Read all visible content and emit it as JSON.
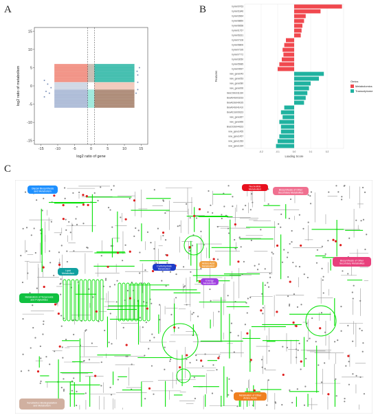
{
  "panel_letters": {
    "a": "A",
    "b": "B",
    "c": "C"
  },
  "chart_data": [
    {
      "type": "scatter",
      "panel": "A",
      "xlabel": "log2 ratio of gene",
      "ylabel": "log2 ratio of metabolism",
      "xlim": [
        -17,
        17
      ],
      "ylim": [
        -16,
        16
      ],
      "xticks": [
        -15,
        -10,
        -5,
        0,
        5,
        10,
        15
      ],
      "yticks": [
        -15,
        -10,
        -5,
        0,
        5,
        10,
        15
      ],
      "threshold_lines": [
        -1,
        1
      ],
      "grid": false,
      "regions": [
        {
          "x": [
            -11,
            -1
          ],
          "y": [
            1,
            6
          ],
          "color": "#f08070"
        },
        {
          "x": [
            1,
            13
          ],
          "y": [
            1,
            6
          ],
          "color": "#20b2a0"
        },
        {
          "x": [
            -11,
            -1
          ],
          "y": [
            -6,
            -1
          ],
          "color": "#a0b0d0"
        },
        {
          "x": [
            1,
            13
          ],
          "y": [
            -6,
            -1
          ],
          "color": "#a07860"
        },
        {
          "x": [
            -1,
            1
          ],
          "y": [
            1,
            6
          ],
          "color": "#bdb1a5"
        },
        {
          "x": [
            -1,
            1
          ],
          "y": [
            -6,
            -1
          ],
          "color": "#8ee6d6"
        },
        {
          "x": [
            -11,
            -1
          ],
          "y": [
            -1,
            1
          ],
          "color": "#c7d0e0"
        },
        {
          "x": [
            1,
            13
          ],
          "y": [
            -1,
            1
          ],
          "color": "#f0c0b0"
        }
      ]
    },
    {
      "type": "bar",
      "panel": "B",
      "orientation": "horizontal",
      "xlabel": "Loading Score",
      "ylabel": "Features",
      "xlim": [
        -0.3,
        0.3
      ],
      "xticks": [
        -0.2,
        -0.1,
        0.0,
        0.1,
        0.2
      ],
      "legend_title": "Omics",
      "legend_position": "right",
      "series": [
        {
          "name": "Metabolomics",
          "color": "#f0484e"
        },
        {
          "name": "Transcriptome",
          "color": "#20b2a0"
        }
      ],
      "categories": [
        "hymn00763",
        "hymn01846",
        "hymn03964",
        "hymn08850",
        "hymn06658",
        "hymn01757",
        "hymn06331",
        "hymn07108",
        "hymn06806",
        "hymn07195",
        "hymn07772",
        "hymn03050",
        "hymn05985",
        "hymn04997",
        "new_gene043",
        "new_gene053",
        "new_gene080",
        "new_gene006",
        "BraC03G011330",
        "BraA04G003233",
        "BraA03G040025",
        "BraA04G041410",
        "BraA01G009323",
        "new_gene367",
        "new_gene966",
        "BraC03G044323",
        "new_gene1455",
        "new_gene1457",
        "new_gene1283",
        "new_gene1334"
      ],
      "values": [
        0.29,
        0.16,
        0.07,
        0.06,
        0.05,
        0.045,
        0.04,
        -0.05,
        -0.06,
        -0.07,
        -0.065,
        -0.075,
        -0.09,
        -0.1,
        0.18,
        0.15,
        0.1,
        0.09,
        0.08,
        0.07,
        0.06,
        -0.06,
        -0.08,
        -0.07,
        -0.09,
        -0.08,
        -0.08,
        -0.09,
        -0.1,
        -0.11
      ],
      "series_index": [
        0,
        0,
        0,
        0,
        0,
        0,
        0,
        0,
        0,
        0,
        0,
        0,
        0,
        0,
        1,
        1,
        1,
        1,
        1,
        1,
        1,
        1,
        1,
        1,
        1,
        1,
        1,
        1,
        1,
        1
      ]
    }
  ],
  "legend": {
    "title": "Omics",
    "items": [
      "Metabolomics",
      "Transcriptome"
    ]
  },
  "map": {
    "labels": [
      {
        "text": "Glycan Biosynthesis and Metabolism",
        "color": "#1e90ff"
      },
      {
        "text": "Nucleotide Metabolism",
        "color": "#e8101e"
      },
      {
        "text": "Biosynthesis of Other Secondary Metabolites",
        "color": "#f07090"
      },
      {
        "text": "Carbohydrate Metabolism",
        "color": "#1e3cc8"
      },
      {
        "text": "Amino Acid Metabolism",
        "color": "#f0a040"
      },
      {
        "text": "Lipid Metabolism",
        "color": "#10a0a0"
      },
      {
        "text": "Energy Metabolism",
        "color": "#a040e0"
      },
      {
        "text": "Biosynthesis of Other Secondary Metabolites",
        "color": "#e8407c"
      },
      {
        "text": "Metabolism of Terpenoids and Polyketides",
        "color": "#10c040"
      },
      {
        "text": "Metabolism of Other Amino Acids",
        "color": "#f08020"
      },
      {
        "text": "Xenobiotics Biodegradation and Metabolism",
        "color": "#d0b0a0"
      }
    ],
    "line_color": "#00e000",
    "base_color": "#999999"
  }
}
